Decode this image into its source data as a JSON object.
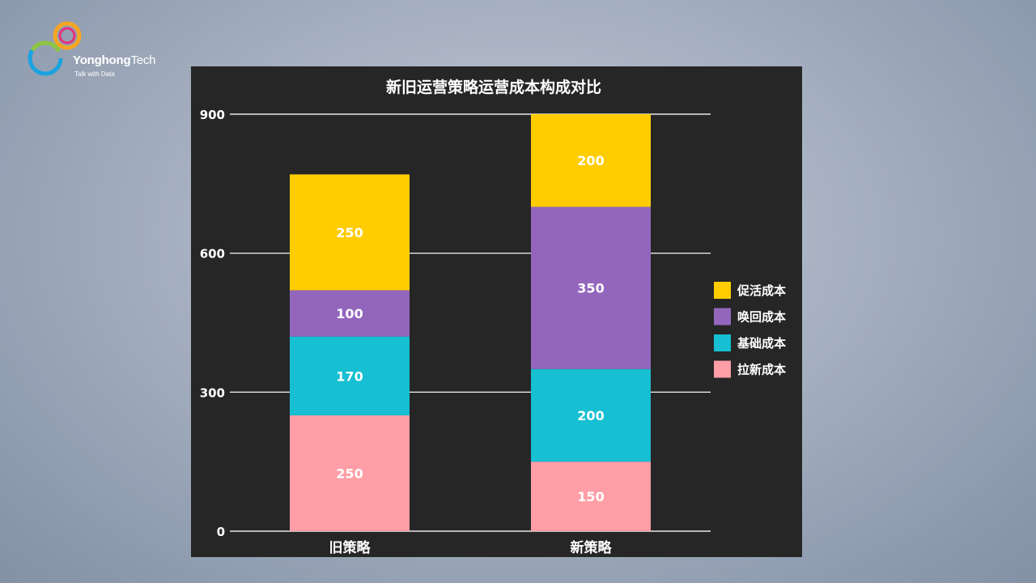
{
  "logo": {
    "brand_part1": "Yonghong",
    "brand_part2": "Tech",
    "tagline": "Talk with Data"
  },
  "chart_data": {
    "type": "stacked-bar",
    "title": "新旧运营策略运营成本构成对比",
    "categories": [
      "旧策略",
      "新策略"
    ],
    "series": [
      {
        "name": "拉新成本",
        "values": [
          250,
          150
        ],
        "color": "#FF9EA6"
      },
      {
        "name": "基础成本",
        "values": [
          170,
          200
        ],
        "color": "#16BFD2"
      },
      {
        "name": "唤回成本",
        "values": [
          100,
          350
        ],
        "color": "#9366BC"
      },
      {
        "name": "促活成本",
        "values": [
          250,
          200
        ],
        "color": "#FFCC00"
      }
    ],
    "yticks": [
      0,
      300,
      600,
      900
    ],
    "ylim": [
      0,
      900
    ],
    "grid": true,
    "legend_position": "right",
    "colors": {
      "background": "#262626",
      "text": "#ffffff",
      "grid": "#e6e6e6"
    }
  }
}
